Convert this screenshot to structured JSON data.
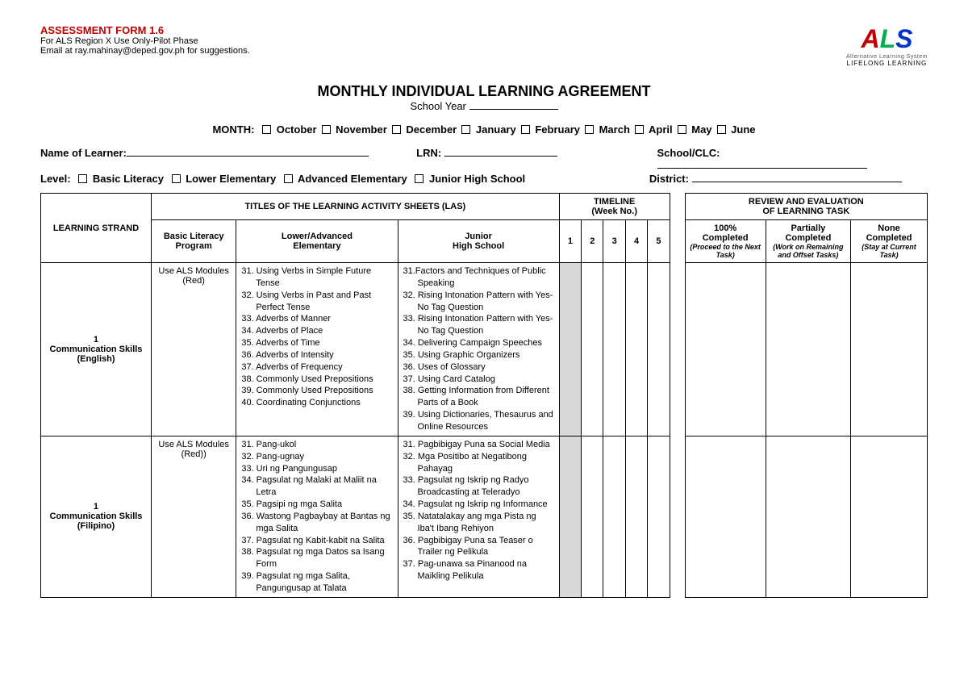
{
  "header": {
    "form_id": "ASSESSMENT FORM 1.6",
    "line1": "For ALS Region X Use Only-Pilot Phase",
    "line2": "Email at ray.mahinay@deped.gov.ph for suggestions."
  },
  "logo": {
    "letter_a": "A",
    "letter_l": "L",
    "letter_s": "S",
    "sub1": "Alternative Learning System",
    "sub2": "LIFELONG LEARNING"
  },
  "title": "MONTHLY INDIVIDUAL LEARNING AGREEMENT",
  "subtitle": "School Year",
  "month_label": "MONTH:",
  "months": [
    "October",
    "November",
    "December",
    "January",
    "February",
    "March",
    "April",
    "May",
    "June"
  ],
  "fields": {
    "name": "Name of Learner:",
    "lrn": "LRN:",
    "school": "School/CLC:",
    "level": "Level:",
    "district": "District:"
  },
  "levels": [
    "Basic Literacy",
    "Lower Elementary",
    "Advanced Elementary",
    "Junior High School"
  ],
  "table_headers": {
    "strand": "LEARNING STRAND",
    "las_title": "TITLES OF THE LEARNING ACTIVITY SHEETS (LAS)",
    "las_cols": [
      "Basic Literacy\nProgram",
      "Lower/Advanced\nElementary",
      "Junior\nHigh School"
    ],
    "timeline": "TIMELINE\n(Week No.)",
    "weeks": [
      "1",
      "2",
      "3",
      "4",
      "5"
    ],
    "review": "REVIEW AND EVALUATION\nOF LEARNING TASK",
    "review_cols": [
      {
        "t": "100%\nCompleted",
        "s": "(Proceed to the Next Task)"
      },
      {
        "t": "Partially\nCompleted",
        "s": "(Work on Remaining and Offset Tasks)"
      },
      {
        "t": "None\nCompleted",
        "s": "(Stay at Current Task)"
      }
    ]
  },
  "rows": [
    {
      "strand_num": "1",
      "strand_name": "Communication Skills\n(English)",
      "basic": "Use ALS Modules\n(Red)",
      "lower_adv": [
        "31. Using Verbs in Simple Future Tense",
        "32. Using Verbs in Past and Past Perfect Tense",
        "33. Adverbs of Manner",
        "34. Adverbs of Place",
        "35. Adverbs of Time",
        "36. Adverbs of Intensity",
        "37. Adverbs of Frequency",
        "38. Commonly Used Prepositions",
        "39. Commonly Used Prepositions",
        "40. Coordinating Conjunctions"
      ],
      "jhs": [
        "31.Factors and Techniques of Public Speaking",
        "32. Rising Intonation Pattern with Yes-No Tag Question",
        "33. Rising Intonation Pattern with Yes-No Tag Question",
        "34. Delivering Campaign Speeches",
        "35. Using Graphic Organizers",
        "36. Uses of Glossary",
        "37. Using Card Catalog",
        "38. Getting Information from Different Parts of a Book",
        "39. Using Dictionaries, Thesaurus and Online Resources"
      ]
    },
    {
      "strand_num": "1",
      "strand_name": "Communication Skills\n(Filipino)",
      "basic": "Use ALS Modules\n(Red))",
      "lower_adv": [
        "31. Pang-ukol",
        "32. Pang-ugnay",
        "33. Uri ng Pangungusap",
        "34. Pagsulat ng Malaki at Maliit na Letra",
        "35. Pagsipi ng mga Salita",
        "36. Wastong Pagbaybay at Bantas ng mga Salita",
        "37. Pagsulat ng Kabit-kabit na Salita",
        "38. Pagsulat ng mga Datos sa Isang Form",
        "39. Pagsulat ng mga Salita, Pangungusap at Talata"
      ],
      "jhs": [
        "31. Pagbibigay Puna sa Social Media",
        "32. Mga Positibo at Negatibong Pahayag",
        "33. Pagsulat ng Iskrip ng Radyo Broadcasting at Teleradyo",
        "34. Pagsulat ng Iskrip ng Informance",
        "35. Natatalakay ang mga Pista ng Iba't Ibang Rehiyon",
        "36. Pagbibigay Puna sa Teaser o Trailer ng Pelikula",
        "37. Pag-unawa sa Pinanood na Maikling Pelikula"
      ]
    }
  ]
}
